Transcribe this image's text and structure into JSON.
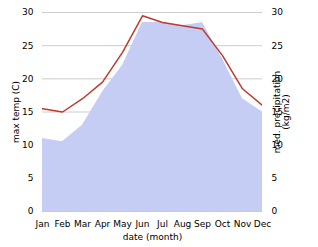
{
  "chart_data": {
    "type": "line",
    "categories": [
      "Jan",
      "Feb",
      "Mar",
      "Apr",
      "May",
      "Jun",
      "Jul",
      "Aug",
      "Sep",
      "Oct",
      "Nov",
      "Dec"
    ],
    "xlabel": "date (month)",
    "ylabel": "max temp (C)",
    "y2label": "med. precipitation\n(kg/m2)",
    "ylim": [
      0,
      30
    ],
    "yticks": [
      0,
      5,
      10,
      15,
      20,
      25,
      30
    ],
    "y2lim": [
      0,
      30
    ],
    "y2ticks": [
      0,
      5,
      10,
      15,
      20,
      25,
      30
    ],
    "grid": true,
    "series": [
      {
        "type": "area",
        "axis": "y2",
        "color": "#c5cdf5",
        "values": [
          11.0,
          10.5,
          13.0,
          18.0,
          22.0,
          28.5,
          28.5,
          28.0,
          28.5,
          23.0,
          17.0,
          15.0
        ]
      },
      {
        "type": "line",
        "color": "#c0392b",
        "values": [
          15.5,
          15.0,
          17.0,
          19.5,
          24.0,
          29.5,
          28.5,
          28.0,
          27.5,
          23.5,
          18.5,
          16.0
        ]
      }
    ]
  }
}
